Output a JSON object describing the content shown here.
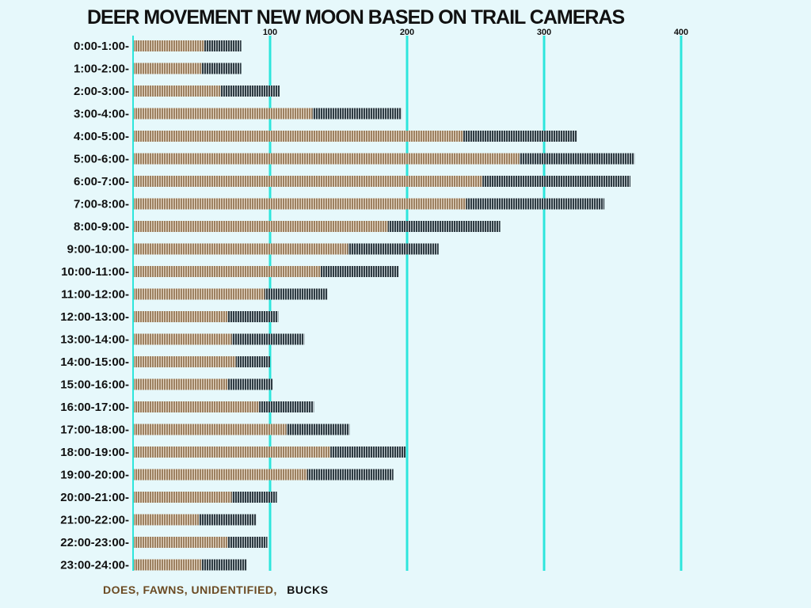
{
  "colors": {
    "background": "#e6f8fb",
    "grid": "#2de6dc",
    "does": "#9c8060",
    "bucks": "#3a4a52",
    "legend_does": "#6b4a22",
    "legend_bucks": "#111111"
  },
  "chart_data": {
    "type": "bar",
    "orientation": "horizontal",
    "stacked": true,
    "title": "DEER MOVEMENT NEW MOON  BASED ON TRAIL CAMERAS",
    "xlim": [
      0,
      400
    ],
    "xticks": [
      "100",
      "200",
      "300",
      "400"
    ],
    "tick_values": [
      100,
      200,
      300,
      400
    ],
    "grid": true,
    "legend_position": "bottom-left",
    "categories": [
      "0:00-1:00-",
      "1:00-2:00-",
      "2:00-3:00-",
      "3:00-4:00-",
      "4:00-5:00-",
      "5:00-6:00-",
      "6:00-7:00-",
      "7:00-8:00-",
      "8:00-9:00-",
      "9:00-10:00-",
      "10:00-11:00-",
      "11:00-12:00-",
      "12:00-13:00-",
      "13:00-14:00-",
      "14:00-15:00-",
      "15:00-16:00-",
      "16:00-17:00-",
      "17:00-18:00-",
      "18:00-19:00-",
      "19:00-20:00-",
      "20:00-21:00-",
      "21:00-22:00-",
      "22:00-23:00-",
      "23:00-24:00-"
    ],
    "series": [
      {
        "name": "DOES, FAWNS, UNIDENTIFIED,",
        "values": [
          52,
          50,
          64,
          131,
          241,
          282,
          255,
          243,
          186,
          157,
          137,
          96,
          69,
          72,
          75,
          69,
          92,
          112,
          144,
          127,
          72,
          48,
          69,
          50
        ]
      },
      {
        "name": "BUCKS",
        "values": [
          27,
          29,
          43,
          65,
          83,
          84,
          108,
          101,
          82,
          66,
          57,
          46,
          37,
          53,
          25,
          33,
          40,
          46,
          55,
          63,
          33,
          42,
          29,
          33
        ]
      }
    ]
  }
}
